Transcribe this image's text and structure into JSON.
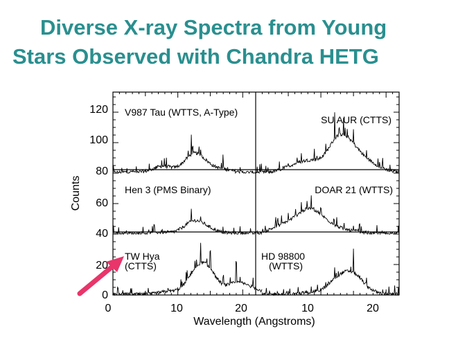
{
  "title_line1": "Diverse X-ray Spectra from Young",
  "title_line2": "Stars Observed with Chandra HETG",
  "colors": {
    "title": "#2a8f8f",
    "arrow": "#e8356a",
    "ink": "#000000"
  },
  "chart_data": {
    "type": "line",
    "title": "Diverse X-ray Spectra from Young Stars Observed with Chandra HETG",
    "ylabel": "Counts",
    "xlabel": "Wavelength (Angstroms)",
    "ylim": [
      0,
      135
    ],
    "y_ticks": [
      0,
      20,
      40,
      60,
      80,
      100,
      120
    ],
    "x_ticks_left": [
      0,
      10,
      20
    ],
    "x_ticks_right": [
      10,
      20
    ],
    "grid": false,
    "panels": [
      {
        "name": "V987 Tau (WTTS, A-Type)",
        "column": "left",
        "row": "top",
        "baseline": 80,
        "x_range": [
          0,
          23
        ],
        "features": [
          [
            3,
            81
          ],
          [
            7.5,
            88
          ],
          [
            8.1,
            84
          ],
          [
            12.1,
            104
          ],
          [
            13.5,
            96
          ],
          [
            15,
            83
          ],
          [
            17,
            85
          ]
        ]
      },
      {
        "name": "SU AUR (CTTS)",
        "column": "right",
        "row": "top",
        "baseline": 80,
        "x_range": [
          1,
          22
        ],
        "features": [
          [
            5,
            87
          ],
          [
            7,
            92
          ],
          [
            9,
            96
          ],
          [
            12.1,
            120
          ],
          [
            13.5,
            110
          ],
          [
            15,
            108
          ],
          [
            17,
            94
          ],
          [
            19,
            86
          ]
        ]
      },
      {
        "name": "Hen 3 (PMS Binary)",
        "column": "left",
        "row": "middle",
        "baseline": 40,
        "x_range": [
          0,
          23
        ],
        "features": [
          [
            7.5,
            42
          ],
          [
            12.1,
            56
          ],
          [
            13.5,
            50
          ],
          [
            15,
            44
          ]
        ]
      },
      {
        "name": "DOAR 21 (WTTS)",
        "column": "right",
        "row": "middle",
        "baseline": 40,
        "x_range": [
          1,
          22
        ],
        "features": [
          [
            3,
            47
          ],
          [
            5,
            53
          ],
          [
            7,
            60
          ],
          [
            8.5,
            65
          ],
          [
            10,
            56
          ],
          [
            12,
            50
          ],
          [
            15,
            44
          ]
        ]
      },
      {
        "name": "TW Hya (CTTS)",
        "column": "left",
        "row": "bottom",
        "baseline": 0,
        "x_range": [
          0,
          23
        ],
        "features": [
          [
            8.5,
            5
          ],
          [
            12.1,
            16
          ],
          [
            13.5,
            33
          ],
          [
            15,
            28
          ],
          [
            19,
            20
          ],
          [
            21.6,
            10
          ]
        ]
      },
      {
        "name": "HD 98800 (WTTS)",
        "column": "right",
        "row": "bottom",
        "baseline": 0,
        "x_range": [
          1,
          22
        ],
        "features": [
          [
            8.5,
            4
          ],
          [
            12.1,
            18
          ],
          [
            13.5,
            14
          ],
          [
            15,
            29
          ],
          [
            17,
            6
          ]
        ]
      }
    ]
  },
  "labels": {
    "v987": "V987 Tau (WTTS, A-Type)",
    "suaur": "SU AUR (CTTS)",
    "hen3": "Hen 3 (PMS Binary)",
    "doar21": "DOAR 21 (WTTS)",
    "twhya_1": "TW Hya",
    "twhya_2": "(CTTS)",
    "hd98800_1": "HD 98800",
    "hd98800_2": "(WTTS)"
  },
  "axis": {
    "ylabel": "Counts",
    "xlabel": "Wavelength (Angstroms)",
    "yticks": [
      "0",
      "20",
      "40",
      "60",
      "80",
      "100",
      "120"
    ],
    "xticks_left": [
      "0",
      "10",
      "20"
    ],
    "xticks_right": [
      "10",
      "20"
    ]
  }
}
